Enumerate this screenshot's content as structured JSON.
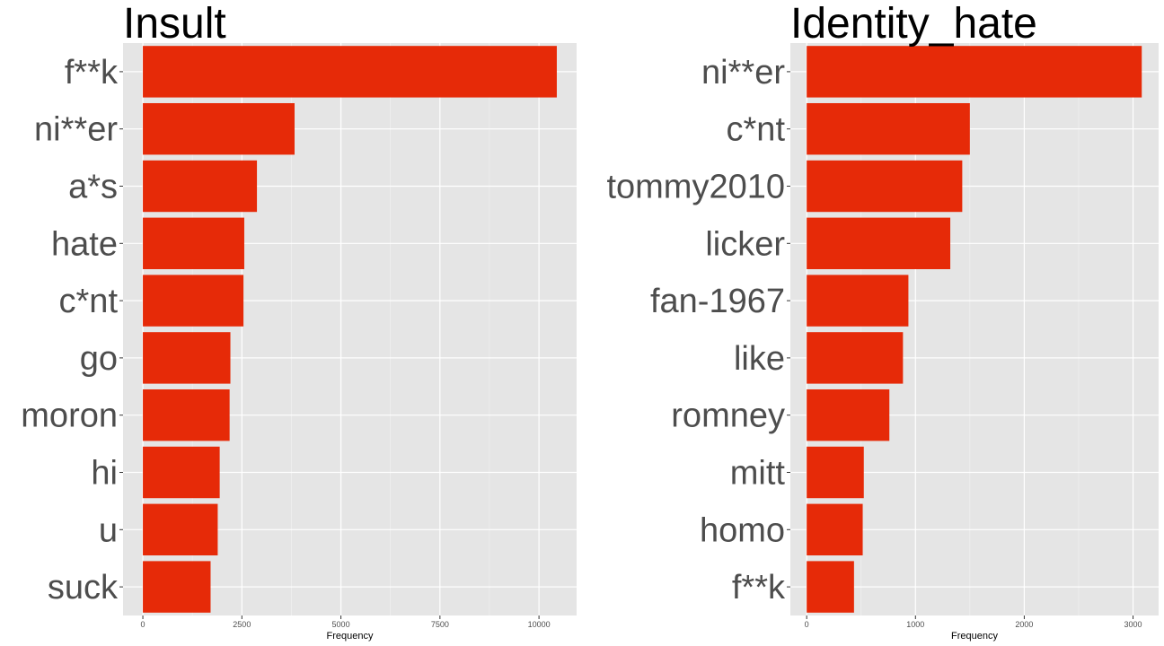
{
  "chart_data": [
    {
      "type": "bar",
      "orientation": "horizontal",
      "title": "Insult",
      "xlabel": "Frequency",
      "ylabel": "",
      "categories": [
        "f**k",
        "ni**er",
        "a*s",
        "hate",
        "c*nt",
        "go",
        "moron",
        "hi",
        "u",
        "suck"
      ],
      "values": [
        10450,
        3830,
        2880,
        2560,
        2540,
        2210,
        2190,
        1940,
        1890,
        1710
      ],
      "xlim": [
        -500,
        10950
      ],
      "xticks": [
        0,
        2500,
        5000,
        7500,
        10000
      ],
      "xtick_labels": [
        "0",
        "2500",
        "5000",
        "7500",
        "10000"
      ],
      "bar_color": "#e62a08",
      "panel_bg": "#e5e5e5",
      "grid": true
    },
    {
      "type": "bar",
      "orientation": "horizontal",
      "title": "Identity_hate",
      "xlabel": "Frequency",
      "ylabel": "",
      "categories": [
        "ni**er",
        "c*nt",
        "tommy2010",
        "licker",
        "fan-1967",
        "like",
        "romney",
        "mitt",
        "homo",
        "f**k"
      ],
      "values": [
        3080,
        1500,
        1430,
        1320,
        935,
        885,
        760,
        525,
        515,
        435
      ],
      "xlim": [
        -150,
        3235
      ],
      "xticks": [
        0,
        1000,
        2000,
        3000
      ],
      "xtick_labels": [
        "0",
        "1000",
        "2000",
        "3000"
      ],
      "bar_color": "#e62a08",
      "panel_bg": "#e5e5e5",
      "grid": true
    }
  ]
}
